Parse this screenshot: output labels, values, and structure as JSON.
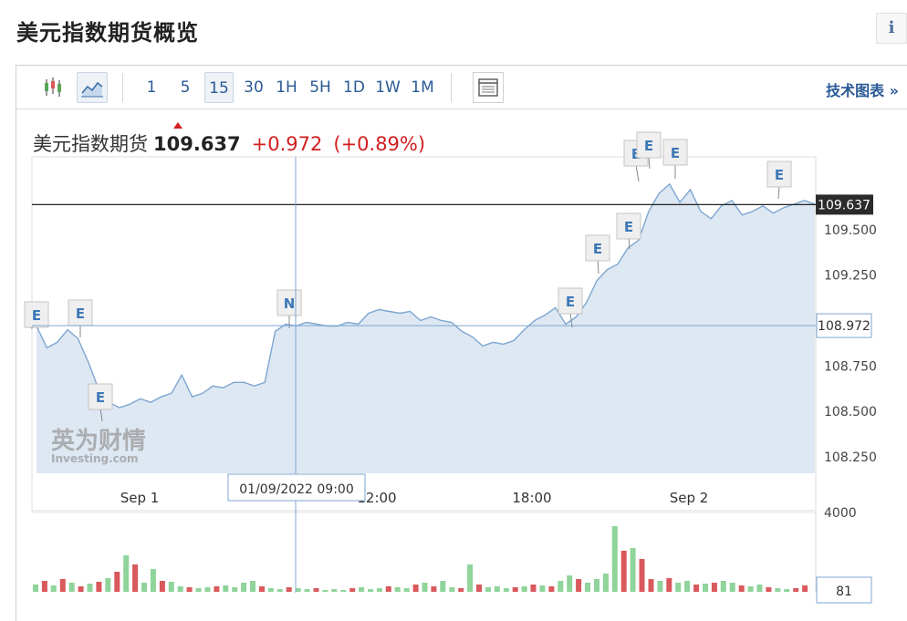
{
  "page": {
    "title": "美元指数期货概览",
    "info_icon": "i"
  },
  "toolbar": {
    "icons": [
      "candlestick-icon",
      "line-chart-icon",
      "table-icon"
    ],
    "intervals": [
      "1",
      "5",
      "15",
      "30",
      "1H",
      "5H",
      "1D",
      "1W",
      "1M"
    ],
    "selected_interval": "15",
    "tech_chart_label": "技术图表 »"
  },
  "quote": {
    "name": "美元指数期货",
    "price": "109.637",
    "change": "+0.972",
    "change_pct": "(+0.89%)"
  },
  "colors": {
    "up": "#d21f1f",
    "line": "#7ea6d0",
    "area": "#dde8f3",
    "vol_up": "#8fd49a",
    "vol_down": "#d9595c",
    "accent": "#2a5a96"
  },
  "chart_data": {
    "type": "area",
    "x_tick_labels": [
      "Sep 1",
      "12:00",
      "18:00",
      "Sep 2"
    ],
    "y_tick_labels": [
      "109.500",
      "109.250",
      "108.750",
      "108.500",
      "108.250"
    ],
    "ylim": [
      108.16,
      109.9
    ],
    "y": [
      108.97,
      108.85,
      108.88,
      108.95,
      108.9,
      108.77,
      108.62,
      108.55,
      108.52,
      108.54,
      108.57,
      108.55,
      108.58,
      108.6,
      108.7,
      108.58,
      108.6,
      108.64,
      108.63,
      108.66,
      108.66,
      108.64,
      108.66,
      108.94,
      108.98,
      108.97,
      108.99,
      108.98,
      108.97,
      108.97,
      108.99,
      108.98,
      109.04,
      109.06,
      109.05,
      109.04,
      109.05,
      109.0,
      109.02,
      109.0,
      108.99,
      108.94,
      108.91,
      108.86,
      108.88,
      108.87,
      108.89,
      108.95,
      109.0,
      109.03,
      109.07,
      108.98,
      109.02,
      109.1,
      109.22,
      109.28,
      109.31,
      109.4,
      109.44,
      109.6,
      109.7,
      109.75,
      109.65,
      109.72,
      109.6,
      109.56,
      109.63,
      109.66,
      109.58,
      109.6,
      109.63,
      109.59,
      109.62,
      109.64,
      109.66,
      109.64
    ],
    "last_price_label": "109.637",
    "crosshair": {
      "date_label": "01/09/2022 09:00",
      "price_label": "108.972",
      "volume_label": "81"
    },
    "event_markers": [
      "E",
      "E",
      "E",
      "N",
      "E",
      "E",
      "E",
      "E",
      "E",
      "E",
      "E"
    ],
    "volume": {
      "axis_max_label": "4000",
      "values": [
        8,
        12,
        7,
        14,
        10,
        6,
        9,
        11,
        15,
        22,
        40,
        30,
        10,
        25,
        12,
        11,
        6,
        5,
        4,
        5,
        6,
        7,
        5,
        10,
        12,
        6,
        4,
        3,
        5,
        4,
        3,
        4,
        2,
        3,
        2,
        4,
        5,
        3,
        4,
        6,
        5,
        4,
        8,
        10,
        6,
        12,
        5,
        4,
        30,
        8,
        5,
        6,
        4,
        5,
        6,
        8,
        7,
        6,
        12,
        18,
        14,
        10,
        14,
        20,
        72,
        45,
        48,
        36,
        14,
        12,
        15,
        10,
        12,
        8,
        9,
        10,
        12,
        10,
        7,
        6,
        8,
        5,
        4,
        3,
        4,
        7
      ],
      "down": [
        false,
        true,
        false,
        true,
        false,
        true,
        false,
        true,
        false,
        true,
        false,
        true,
        false,
        false,
        true,
        false,
        false,
        true,
        false,
        false,
        true,
        false,
        false,
        false,
        false,
        true,
        false,
        false,
        true,
        false,
        false,
        true,
        false,
        false,
        false,
        true,
        false,
        false,
        false,
        true,
        false,
        false,
        true,
        false,
        true,
        false,
        false,
        true,
        false,
        true,
        false,
        false,
        false,
        true,
        false,
        true,
        false,
        true,
        false,
        false,
        true,
        false,
        false,
        false,
        false,
        true,
        false,
        true,
        true,
        false,
        true,
        false,
        false,
        true,
        false,
        true,
        false,
        false,
        true,
        false,
        false,
        true,
        false,
        false,
        true,
        true
      ]
    }
  }
}
